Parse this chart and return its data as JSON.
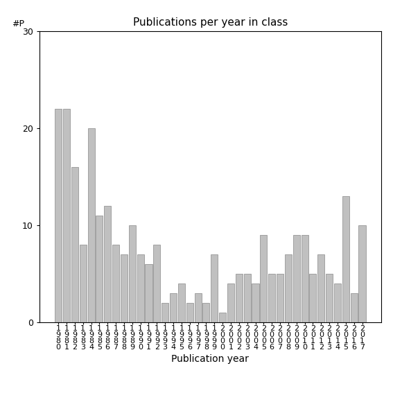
{
  "title": "Publications per year in class",
  "xlabel": "Publication year",
  "ylabel": "#P",
  "ylim": [
    0,
    30
  ],
  "bar_color": "#c0c0c0",
  "bar_edgecolor": "#888888",
  "years": [
    1980,
    1981,
    1982,
    1983,
    1984,
    1985,
    1986,
    1987,
    1988,
    1989,
    1990,
    1991,
    1992,
    1993,
    1994,
    1995,
    1996,
    1997,
    1998,
    1999,
    2000,
    2001,
    2002,
    2003,
    2004,
    2005,
    2006,
    2007,
    2008,
    2009,
    2010,
    2011,
    2012,
    2013,
    2014,
    2015,
    2016,
    2017
  ],
  "values": [
    22,
    22,
    16,
    8,
    20,
    11,
    12,
    8,
    7,
    10,
    7,
    6,
    8,
    2,
    3,
    4,
    2,
    3,
    2,
    7,
    1,
    4,
    5,
    5,
    4,
    9,
    5,
    5,
    7,
    9,
    9,
    5,
    7,
    5,
    4,
    13,
    3,
    10
  ],
  "yticks": [
    0,
    10,
    20,
    30
  ],
  "title_fontsize": 11,
  "xlabel_fontsize": 10,
  "ylabel_fontsize": 9,
  "tick_fontsize": 9,
  "background_color": "#ffffff"
}
